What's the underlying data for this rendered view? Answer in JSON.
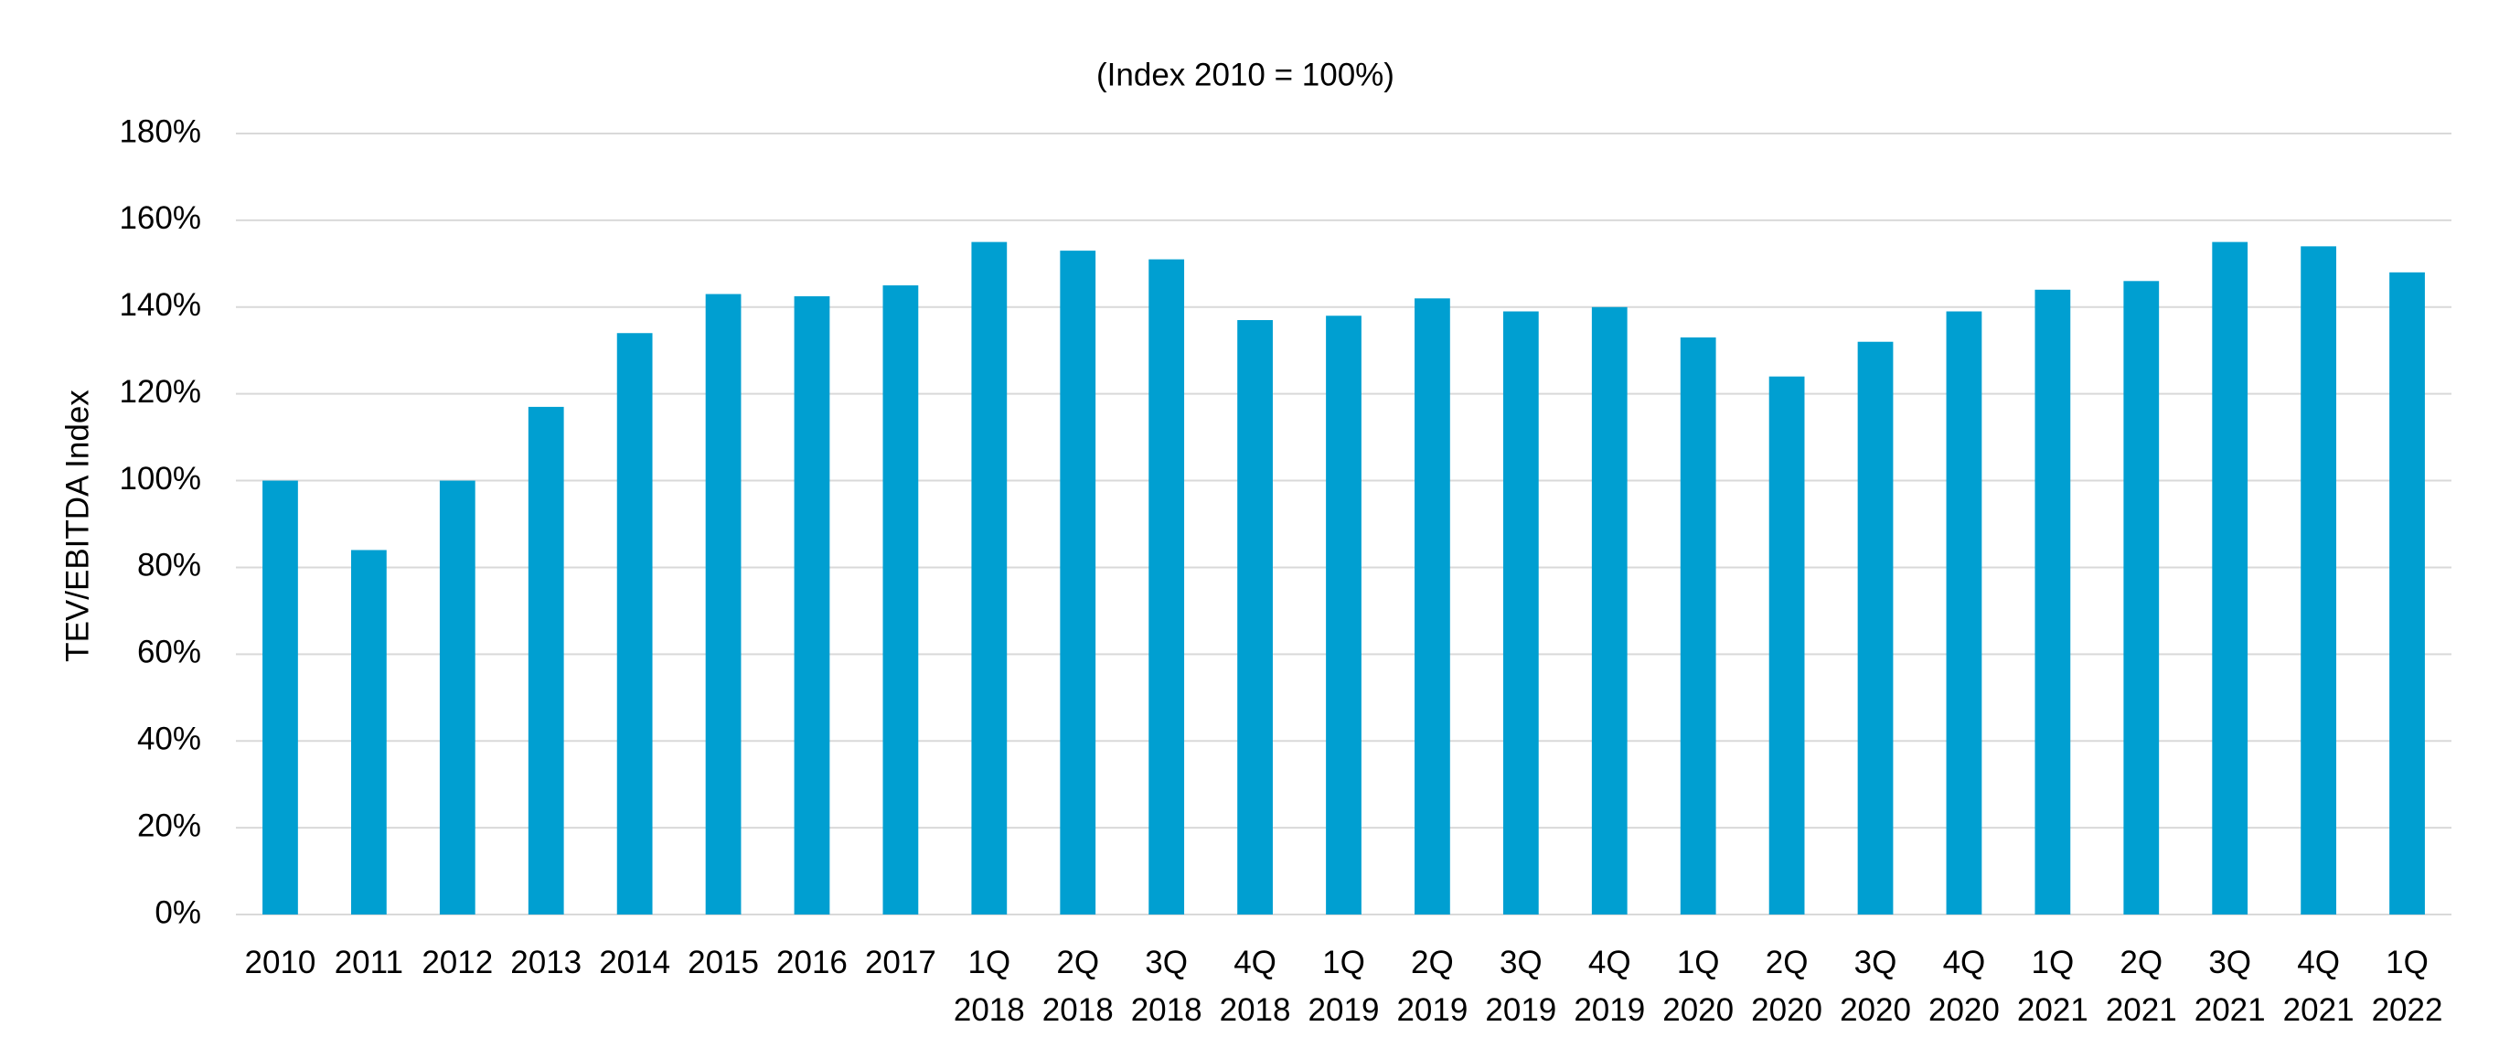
{
  "chart_data": {
    "type": "bar",
    "title": "(Index 2010 = 100%)",
    "y_label": "TEV/EBITDA Index",
    "categories": [
      "2010",
      "2011",
      "2012",
      "2013",
      "2014",
      "2015",
      "2016",
      "2017",
      "1Q 2018",
      "2Q 2018",
      "3Q 2018",
      "4Q 2018",
      "1Q 2019",
      "2Q 2019",
      "3Q 2019",
      "4Q 2019",
      "1Q 2020",
      "2Q 2020",
      "3Q 2020",
      "4Q 2020",
      "1Q 2021",
      "2Q 2021",
      "3Q 2021",
      "4Q 2021",
      "1Q 2022"
    ],
    "values": [
      100,
      84,
      100,
      117,
      134,
      143,
      142.5,
      145,
      155,
      153,
      151,
      137,
      138,
      142,
      139,
      140,
      133,
      124,
      132,
      139,
      144,
      146,
      155,
      154,
      148
    ],
    "color": "#009fd1",
    "ylim": [
      0,
      180
    ],
    "yticks": [
      {
        "value": 0,
        "label": "0%"
      },
      {
        "value": 20,
        "label": "20%"
      },
      {
        "value": 40,
        "label": "40%"
      },
      {
        "value": 60,
        "label": "60%"
      },
      {
        "value": 80,
        "label": "80%"
      },
      {
        "value": 100,
        "label": "100%"
      },
      {
        "value": 120,
        "label": "120%"
      },
      {
        "value": 140,
        "label": "140%"
      },
      {
        "value": 160,
        "label": "160%"
      },
      {
        "value": 180,
        "label": "180%"
      }
    ],
    "grid": true
  }
}
